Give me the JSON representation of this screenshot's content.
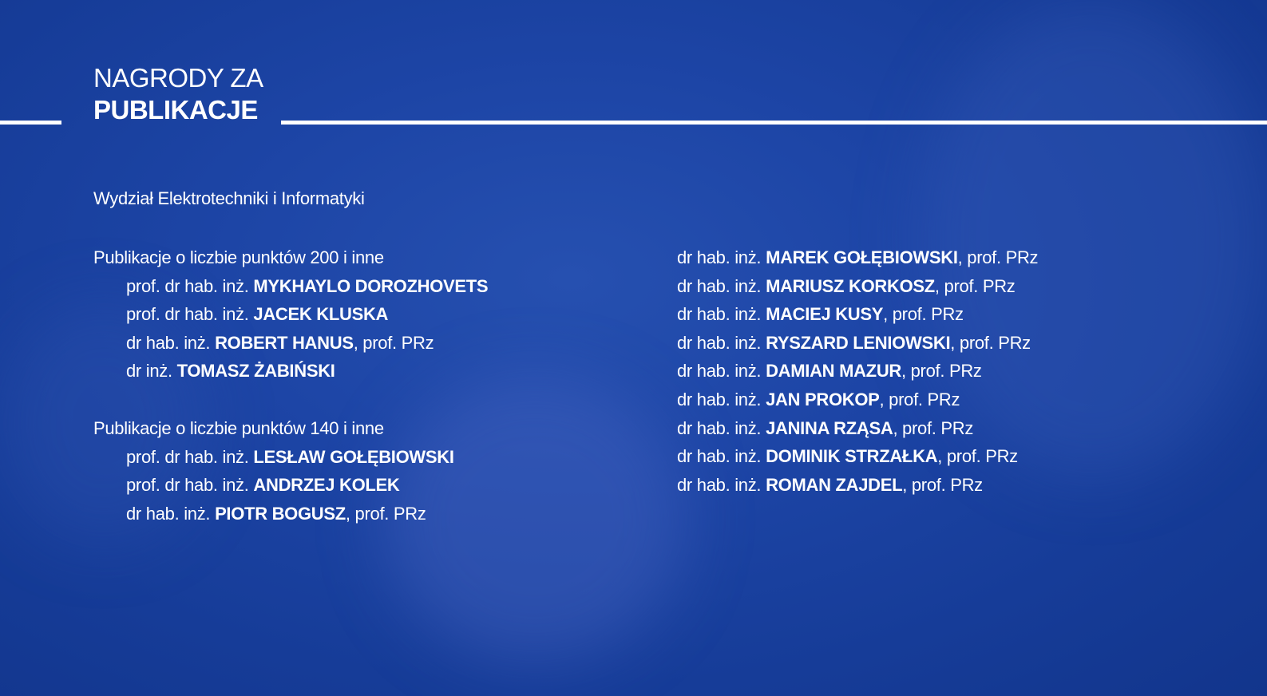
{
  "header": {
    "title_line1": "NAGRODY ZA",
    "title_line2": "PUBLIKACJE"
  },
  "department": "Wydział Elektrotechniki i Informatyki",
  "colors": {
    "background": "#1a409d",
    "text": "#ffffff"
  },
  "groups": [
    {
      "heading": "Publikacje o liczbie punktów 200 i inne",
      "entries": [
        {
          "prefix": "prof. dr hab. inż. ",
          "name": "MYKHAYLO DOROZHOVETS",
          "suffix": ""
        },
        {
          "prefix": "prof. dr hab. inż. ",
          "name": "JACEK KLUSKA",
          "suffix": ""
        },
        {
          "prefix": "dr hab. inż. ",
          "name": "ROBERT HANUS",
          "suffix": ", prof. PRz"
        },
        {
          "prefix": "dr inż. ",
          "name": "TOMASZ ŻABIŃSKI",
          "suffix": ""
        }
      ]
    },
    {
      "heading": "Publikacje o liczbie punktów 140 i inne",
      "entries": [
        {
          "prefix": "prof. dr hab. inż. ",
          "name": "LESŁAW GOŁĘBIOWSKI",
          "suffix": ""
        },
        {
          "prefix": "prof. dr hab. inż. ",
          "name": "ANDRZEJ KOLEK",
          "suffix": ""
        },
        {
          "prefix": "dr hab. inż. ",
          "name": "PIOTR BOGUSZ",
          "suffix": ", prof. PRz"
        }
      ]
    }
  ],
  "right_column": [
    {
      "prefix": "dr hab. inż. ",
      "name": "MAREK GOŁĘBIOWSKI",
      "suffix": ", prof. PRz"
    },
    {
      "prefix": "dr hab. inż. ",
      "name": "MARIUSZ KORKOSZ",
      "suffix": ", prof. PRz"
    },
    {
      "prefix": "dr hab. inż. ",
      "name": "MACIEJ KUSY",
      "suffix": ", prof. PRz"
    },
    {
      "prefix": "dr hab. inż. ",
      "name": "RYSZARD LENIOWSKI",
      "suffix": ", prof. PRz"
    },
    {
      "prefix": "dr hab. inż. ",
      "name": "DAMIAN MAZUR",
      "suffix": ", prof. PRz"
    },
    {
      "prefix": "dr hab. inż. ",
      "name": "JAN PROKOP",
      "suffix": ", prof. PRz"
    },
    {
      "prefix": "dr hab. inż. ",
      "name": "JANINA RZĄSA",
      "suffix": ", prof. PRz"
    },
    {
      "prefix": "dr hab. inż. ",
      "name": "DOMINIK STRZAŁKA",
      "suffix": ", prof. PRz"
    },
    {
      "prefix": "dr hab. inż. ",
      "name": "ROMAN ZAJDEL",
      "suffix": ", prof. PRz"
    }
  ]
}
